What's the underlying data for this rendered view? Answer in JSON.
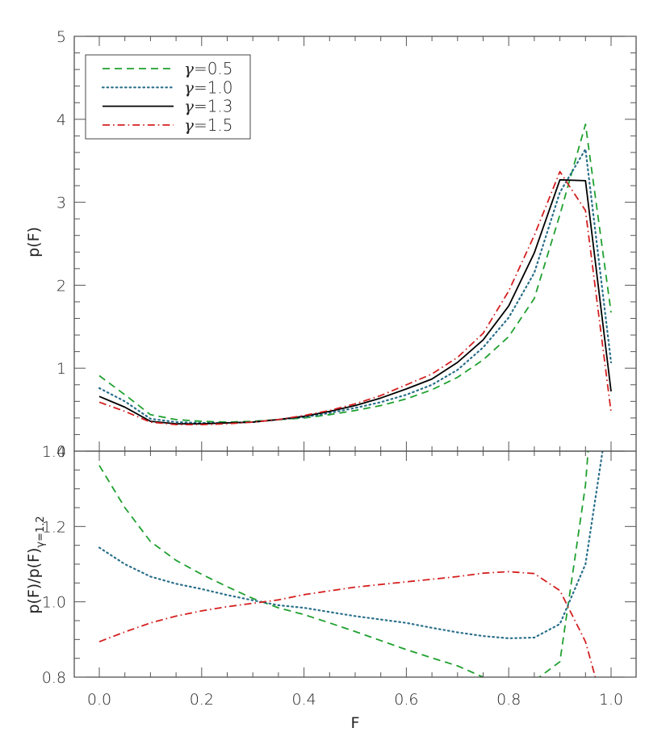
{
  "chart_data": [
    {
      "panel": "top",
      "type": "line",
      "xlabel": "",
      "ylabel": "p(F)",
      "xlim": [
        -0.05,
        1.05
      ],
      "ylim": [
        0,
        5
      ],
      "yticks": [
        "0",
        "1",
        "2",
        "3",
        "4",
        "5"
      ],
      "ytick_values": [
        0,
        1,
        2,
        3,
        4,
        5
      ],
      "legend_position": "upper left",
      "x": [
        0.0,
        0.05,
        0.1,
        0.15,
        0.2,
        0.25,
        0.3,
        0.35,
        0.4,
        0.45,
        0.5,
        0.55,
        0.6,
        0.65,
        0.7,
        0.75,
        0.8,
        0.85,
        0.9,
        0.95,
        1.0
      ],
      "series": [
        {
          "name": "γ=0.5",
          "label_symbol": "γ",
          "label_value": "=0.5",
          "color": "#1fa02f",
          "style": "dashed",
          "values": [
            0.91,
            0.68,
            0.44,
            0.38,
            0.36,
            0.35,
            0.36,
            0.38,
            0.4,
            0.44,
            0.49,
            0.55,
            0.63,
            0.74,
            0.89,
            1.1,
            1.38,
            1.84,
            2.85,
            3.94,
            1.67
          ]
        },
        {
          "name": "γ=1.0",
          "label_symbol": "γ",
          "label_value": "=1.0",
          "color": "#2a6f8a",
          "style": "dotted",
          "values": [
            0.76,
            0.6,
            0.39,
            0.35,
            0.34,
            0.34,
            0.35,
            0.38,
            0.41,
            0.46,
            0.52,
            0.59,
            0.68,
            0.8,
            0.98,
            1.25,
            1.61,
            2.15,
            3.12,
            3.64,
            1.07
          ]
        },
        {
          "name": "γ=1.3",
          "label_symbol": "γ",
          "label_value": "=1.3",
          "color": "#000000",
          "style": "solid",
          "values": [
            0.66,
            0.53,
            0.36,
            0.33,
            0.33,
            0.34,
            0.35,
            0.38,
            0.42,
            0.48,
            0.55,
            0.64,
            0.75,
            0.87,
            1.07,
            1.34,
            1.75,
            2.39,
            3.27,
            3.26,
            0.72
          ]
        },
        {
          "name": "γ=1.5",
          "label_symbol": "γ",
          "label_value": "=1.5",
          "color": "#d42020",
          "style": "dashdot",
          "values": [
            0.59,
            0.48,
            0.35,
            0.32,
            0.32,
            0.33,
            0.35,
            0.38,
            0.43,
            0.49,
            0.57,
            0.67,
            0.8,
            0.93,
            1.13,
            1.42,
            1.93,
            2.6,
            3.37,
            2.9,
            0.47
          ]
        }
      ]
    },
    {
      "panel": "bottom",
      "type": "line",
      "xlabel": "F",
      "ylabel": "p(F)/p(F)",
      "ylabel_subscript": "γ=1.2",
      "xlim": [
        -0.05,
        1.05
      ],
      "ylim": [
        0.8,
        1.4
      ],
      "xticks": [
        "0.0",
        "0.2",
        "0.4",
        "0.6",
        "0.8",
        "1.0"
      ],
      "xtick_values": [
        0.0,
        0.2,
        0.4,
        0.6,
        0.8,
        1.0
      ],
      "yticks": [
        "0.8",
        "1.0",
        "1.2",
        "1.4"
      ],
      "ytick_values": [
        0.8,
        1.0,
        1.2,
        1.4
      ],
      "x": [
        0.0,
        0.05,
        0.1,
        0.15,
        0.2,
        0.25,
        0.3,
        0.35,
        0.4,
        0.45,
        0.5,
        0.55,
        0.6,
        0.65,
        0.7,
        0.75,
        0.8,
        0.85,
        0.9,
        0.95,
        1.0
      ],
      "series": [
        {
          "name": "γ=0.5",
          "color": "#1fa02f",
          "style": "dashed",
          "values": [
            1.362,
            1.25,
            1.16,
            1.11,
            1.073,
            1.04,
            1.009,
            0.984,
            0.966,
            0.944,
            0.921,
            0.897,
            0.873,
            0.851,
            0.83,
            0.8,
            0.77,
            0.79,
            0.841,
            1.31,
            2.2
          ]
        },
        {
          "name": "γ=1.0",
          "color": "#2a6f8a",
          "style": "dotted",
          "values": [
            1.144,
            1.1,
            1.067,
            1.048,
            1.034,
            1.018,
            1.004,
            0.991,
            0.984,
            0.973,
            0.962,
            0.953,
            0.944,
            0.931,
            0.919,
            0.909,
            0.903,
            0.905,
            0.941,
            1.1,
            1.55
          ]
        },
        {
          "name": "γ=1.5",
          "color": "#d42020",
          "style": "dashdot",
          "values": [
            0.894,
            0.92,
            0.944,
            0.962,
            0.976,
            0.987,
            0.996,
            1.005,
            1.019,
            1.029,
            1.039,
            1.046,
            1.053,
            1.06,
            1.067,
            1.076,
            1.08,
            1.075,
            1.03,
            0.894,
            0.65
          ]
        }
      ]
    }
  ],
  "legend": {
    "entries": [
      {
        "symbol": "γ",
        "text": "=0.5",
        "color": "#1fa02f",
        "style": "dashed"
      },
      {
        "symbol": "γ",
        "text": "=1.0",
        "color": "#2a6f8a",
        "style": "dotted"
      },
      {
        "symbol": "γ",
        "text": "=1.3",
        "color": "#000000",
        "style": "solid"
      },
      {
        "symbol": "γ",
        "text": "=1.5",
        "color": "#d42020",
        "style": "dashdot"
      }
    ]
  },
  "labels": {
    "top_ylabel": "p(F)",
    "bottom_ylabel_main": "p(F)/p(F)",
    "bottom_ylabel_sub": "γ=1.2",
    "xlabel": "F"
  }
}
